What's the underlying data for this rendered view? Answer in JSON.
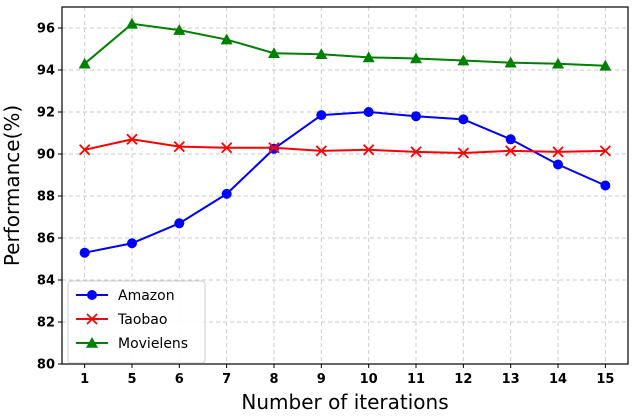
{
  "chart_data": {
    "type": "line",
    "xlabel": "Number of iterations",
    "ylabel": "Performance(%)",
    "categories": [
      "1",
      "5",
      "6",
      "7",
      "8",
      "9",
      "10",
      "11",
      "12",
      "13",
      "14",
      "15"
    ],
    "ylim": [
      80,
      97
    ],
    "yticks": [
      80,
      82,
      84,
      86,
      88,
      90,
      92,
      94,
      96
    ],
    "grid": true,
    "legend_position": "bottom-left",
    "series": [
      {
        "name": "Amazon",
        "color": "#0000ff",
        "marker": "circle",
        "values": [
          85.3,
          85.75,
          86.7,
          88.1,
          90.25,
          91.85,
          92.0,
          91.8,
          91.65,
          90.7,
          89.5,
          88.5
        ]
      },
      {
        "name": "Taobao",
        "color": "#ff0000",
        "marker": "x",
        "values": [
          90.2,
          90.7,
          90.35,
          90.3,
          90.3,
          90.15,
          90.2,
          90.1,
          90.05,
          90.15,
          90.1,
          90.15
        ]
      },
      {
        "name": "Movielens",
        "color": "#008000",
        "marker": "triangle",
        "values": [
          94.3,
          96.2,
          95.9,
          95.45,
          94.8,
          94.75,
          94.6,
          94.55,
          94.45,
          94.35,
          94.3,
          94.2
        ]
      }
    ]
  }
}
